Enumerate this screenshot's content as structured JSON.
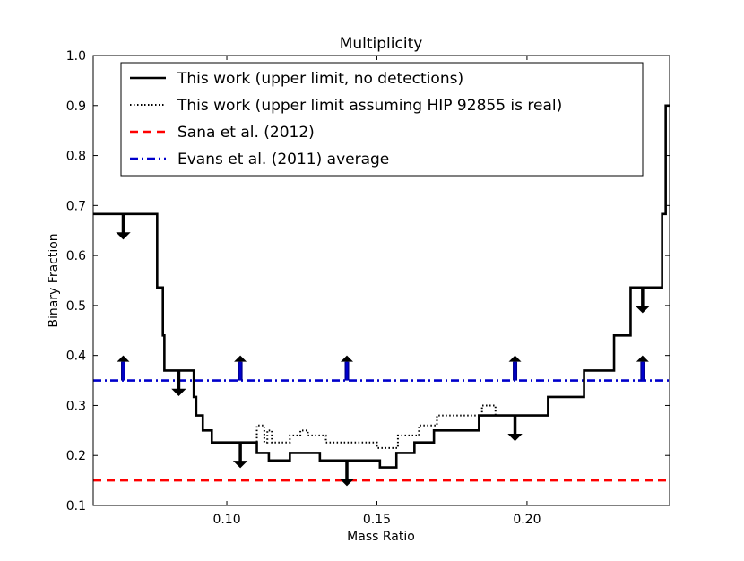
{
  "chart_data": {
    "type": "line",
    "title": "Multiplicity",
    "xlabel": "Mass Ratio",
    "ylabel": "Binary Fraction",
    "xlim": [
      0.0555,
      0.2475
    ],
    "ylim": [
      0.1,
      1.0
    ],
    "xticks": [
      0.1,
      0.15,
      0.2
    ],
    "xtick_labels": [
      "0.10",
      "0.15",
      "0.20"
    ],
    "yticks": [
      0.1,
      0.2,
      0.3,
      0.4,
      0.5,
      0.6,
      0.7,
      0.8,
      0.9,
      1.0
    ],
    "ytick_labels": [
      "0.1",
      "0.2",
      "0.3",
      "0.4",
      "0.5",
      "0.6",
      "0.7",
      "0.8",
      "0.9",
      "1.0"
    ],
    "legend_position": "top-center",
    "series": [
      {
        "name": "This work (upper limit, no detections)",
        "style": "solid",
        "color": "#000000",
        "points": [
          [
            0.0555,
            0.683
          ],
          [
            0.0768,
            0.683
          ],
          [
            0.0768,
            0.536
          ],
          [
            0.0787,
            0.536
          ],
          [
            0.0787,
            0.44
          ],
          [
            0.0792,
            0.44
          ],
          [
            0.0792,
            0.37
          ],
          [
            0.089,
            0.37
          ],
          [
            0.089,
            0.317
          ],
          [
            0.0898,
            0.317
          ],
          [
            0.0898,
            0.28
          ],
          [
            0.092,
            0.28
          ],
          [
            0.092,
            0.25
          ],
          [
            0.095,
            0.25
          ],
          [
            0.095,
            0.226
          ],
          [
            0.103,
            0.226
          ],
          [
            0.103,
            0.226
          ],
          [
            0.11,
            0.226
          ],
          [
            0.11,
            0.205
          ],
          [
            0.114,
            0.205
          ],
          [
            0.114,
            0.19
          ],
          [
            0.121,
            0.19
          ],
          [
            0.121,
            0.205
          ],
          [
            0.125,
            0.205
          ],
          [
            0.125,
            0.205
          ],
          [
            0.131,
            0.205
          ],
          [
            0.131,
            0.19
          ],
          [
            0.151,
            0.19
          ],
          [
            0.151,
            0.176
          ],
          [
            0.1565,
            0.176
          ],
          [
            0.1565,
            0.205
          ],
          [
            0.1625,
            0.205
          ],
          [
            0.1625,
            0.226
          ],
          [
            0.169,
            0.226
          ],
          [
            0.169,
            0.25
          ],
          [
            0.184,
            0.25
          ],
          [
            0.184,
            0.28
          ],
          [
            0.207,
            0.28
          ],
          [
            0.207,
            0.317
          ],
          [
            0.219,
            0.317
          ],
          [
            0.219,
            0.37
          ],
          [
            0.229,
            0.37
          ],
          [
            0.229,
            0.44
          ],
          [
            0.2345,
            0.44
          ],
          [
            0.2345,
            0.536
          ],
          [
            0.245,
            0.536
          ],
          [
            0.245,
            0.683
          ],
          [
            0.2462,
            0.683
          ],
          [
            0.2462,
            0.9
          ],
          [
            0.2475,
            0.9
          ]
        ]
      },
      {
        "name": "This work (upper limit assuming HIP 92855 is real)",
        "style": "dotted",
        "color": "#000000",
        "points": [
          [
            0.103,
            0.226
          ],
          [
            0.11,
            0.226
          ],
          [
            0.11,
            0.26
          ],
          [
            0.1125,
            0.26
          ],
          [
            0.1125,
            0.226
          ],
          [
            0.1135,
            0.226
          ],
          [
            0.1135,
            0.25
          ],
          [
            0.115,
            0.25
          ],
          [
            0.115,
            0.226
          ],
          [
            0.121,
            0.226
          ],
          [
            0.121,
            0.24
          ],
          [
            0.1245,
            0.24
          ],
          [
            0.1245,
            0.25
          ],
          [
            0.127,
            0.25
          ],
          [
            0.127,
            0.24
          ],
          [
            0.133,
            0.24
          ],
          [
            0.133,
            0.226
          ],
          [
            0.15,
            0.226
          ],
          [
            0.15,
            0.215
          ],
          [
            0.157,
            0.215
          ],
          [
            0.157,
            0.24
          ],
          [
            0.164,
            0.24
          ],
          [
            0.164,
            0.26
          ],
          [
            0.17,
            0.26
          ],
          [
            0.17,
            0.28
          ],
          [
            0.185,
            0.28
          ],
          [
            0.185,
            0.3
          ],
          [
            0.1895,
            0.3
          ],
          [
            0.1895,
            0.28
          ]
        ]
      },
      {
        "name": "Sana et al. (2012)",
        "style": "dashed",
        "color": "#ff0000",
        "points": [
          [
            0.0555,
            0.15
          ],
          [
            0.2475,
            0.15
          ]
        ]
      },
      {
        "name": "Evans et al. (2011) average",
        "style": "dashdot",
        "color": "#0000cc",
        "points": [
          [
            0.0555,
            0.35
          ],
          [
            0.2475,
            0.35
          ]
        ]
      }
    ],
    "upper_limit_arrows": [
      {
        "x": 0.0655,
        "y_start": 0.683,
        "y_end": 0.633
      },
      {
        "x": 0.084,
        "y_start": 0.37,
        "y_end": 0.32
      },
      {
        "x": 0.1045,
        "y_start": 0.226,
        "y_end": 0.176
      },
      {
        "x": 0.14,
        "y_start": 0.19,
        "y_end": 0.14
      },
      {
        "x": 0.196,
        "y_start": 0.28,
        "y_end": 0.23
      },
      {
        "x": 0.2385,
        "y_start": 0.536,
        "y_end": 0.486
      }
    ],
    "lower_limit_arrows": [
      {
        "x": 0.0655,
        "y_start": 0.35,
        "y_end": 0.4
      },
      {
        "x": 0.1045,
        "y_start": 0.35,
        "y_end": 0.4
      },
      {
        "x": 0.14,
        "y_start": 0.35,
        "y_end": 0.4
      },
      {
        "x": 0.196,
        "y_start": 0.35,
        "y_end": 0.4
      },
      {
        "x": 0.2385,
        "y_start": 0.35,
        "y_end": 0.4
      }
    ]
  }
}
